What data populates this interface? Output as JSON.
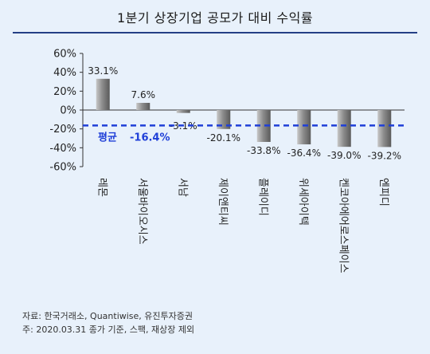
{
  "header": {
    "title": "1분기 상장기업 공모가 대비 수익률"
  },
  "chart_data": {
    "type": "bar",
    "categories": [
      "레몬",
      "서울바이오시스",
      "서남",
      "제이앤티씨",
      "플레이디",
      "위세아이텍",
      "켄코아에어로스페이스",
      "엔피디"
    ],
    "values": [
      33.1,
      7.6,
      -3.1,
      -20.1,
      -33.8,
      -36.4,
      -39.0,
      -39.2
    ],
    "value_labels": [
      "33.1%",
      "7.6%",
      "-3.1%",
      "-20.1%",
      "-33.8%",
      "-36.4%",
      "-39.0%",
      "-39.2%"
    ],
    "y_ticks": [
      "60%",
      "40%",
      "20%",
      "0%",
      "-20%",
      "-40%",
      "-60%"
    ],
    "ylim": [
      -60,
      60
    ],
    "y_step": 20,
    "average": {
      "value": -16.4,
      "label": "평균",
      "value_label": "-16.4%",
      "color": "#1f3fd8"
    },
    "bar_color": "#8c8c8c",
    "grid": false
  },
  "footer": {
    "source": "자료: 한국거래소, Quantiwise, 유진투자증권",
    "note": "주: 2020.03.31 종가 기준, 스팩, 재상장 제외"
  }
}
